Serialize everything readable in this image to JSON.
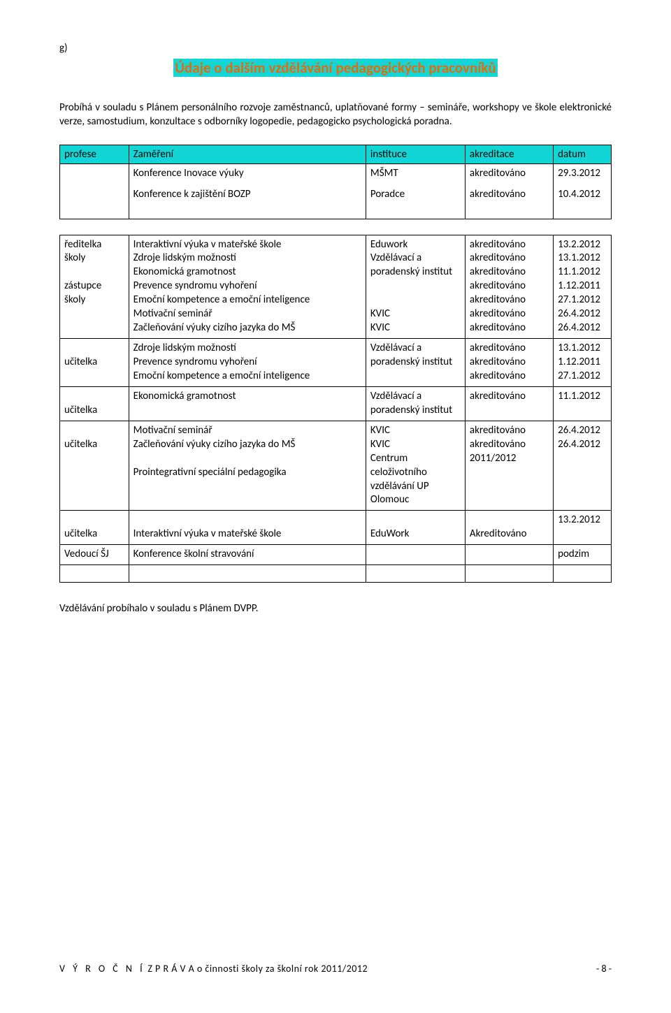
{
  "page": {
    "g": "g)",
    "section_title": "Údaje o dalším vzdělávání pedagogických pracovníků",
    "intro": "Probíhá v souladu s Plánem personálního rozvoje zaměstnanců, uplatňované formy – semináře, workshopy ve škole elektronické verze, samostudium, konzultace s odborníky logopedie, pedagogicko psychologická poradna.",
    "closing": "Vzdělávání probíhalo v souladu s Plánem DVPP."
  },
  "header_row": {
    "c1": "profese",
    "c2": "Zaměření",
    "c3": "instituce",
    "c4": "akreditace",
    "c5": "datum"
  },
  "top_block": {
    "line1": {
      "desc": "Konference Inovace výuky",
      "inst": "MŠMT",
      "acc": "akreditováno",
      "date": "29.3.2012"
    },
    "line2": {
      "desc": "Konference k zajištění BOZP",
      "inst": "Poradce",
      "acc": "akreditováno",
      "date": "10.4.2012"
    }
  },
  "rows": [
    {
      "role": "ředitelka školy\n\nzástupce školy",
      "desc": "Interaktivní výuka v mateřské škole\nZdroje lidským možností\nEkonomická gramotnost\nPrevence syndromu vyhoření\nEmoční kompetence a emoční inteligence\nMotivační seminář\nZačleňování výuky cizího jazyka do MŠ",
      "inst": "Eduwork\nVzdělávací a poradenský institut\n\n\nKVIC\nKVIC",
      "acc": "akreditováno\nakreditováno\nakreditováno\nakreditováno\nakreditováno\nakreditováno\nakreditováno",
      "date": "13.2.2012\n13.1.2012\n11.1.2012\n1.12.2011\n27.1.2012\n26.4.2012\n26.4.2012"
    },
    {
      "role": "\nučitelka",
      "desc": "Zdroje lidským možností\nPrevence syndromu vyhoření\nEmoční kompetence a emoční inteligence",
      "inst": "Vzdělávací a poradenský institut",
      "acc": "akreditováno\nakreditováno\nakreditováno",
      "date": "13.1.2012\n1.12.2011\n27.1.2012"
    },
    {
      "role": "\nučitelka",
      "desc": "Ekonomická gramotnost",
      "inst": "Vzdělávací a poradenský institut",
      "acc": "akreditováno",
      "date": "11.1.2012"
    },
    {
      "role": "\nučitelka",
      "desc": "Motivační seminář\nZačleňování výuky cizího jazyka do MŠ\n\nProintegrativní speciální pedagogika",
      "inst": "KVIC\nKVIC\nCentrum celoživotního vzdělávání UP Olomouc",
      "acc": "akreditováno\nakreditováno\n2011/2012",
      "date": "26.4.2012\n26.4.2012"
    },
    {
      "role": "\nučitelka",
      "desc": "\nInteraktivní výuka v mateřské škole",
      "inst": "\nEduWork",
      "acc": "\nAkreditováno",
      "date": "13.2.2012"
    },
    {
      "role": "Vedoucí ŠJ",
      "desc": "Konference školní stravování",
      "inst": "",
      "acc": "",
      "date": "podzim"
    }
  ],
  "footer": {
    "left_spaced": "V Ý R O Č N Í",
    "left_rest": "  Z P R Á V A  o činnosti školy za školní rok  2011/2012",
    "right": "- 8 -"
  },
  "colors": {
    "highlight_bg": "#12d5d6",
    "title_color": "#e46c0a"
  }
}
